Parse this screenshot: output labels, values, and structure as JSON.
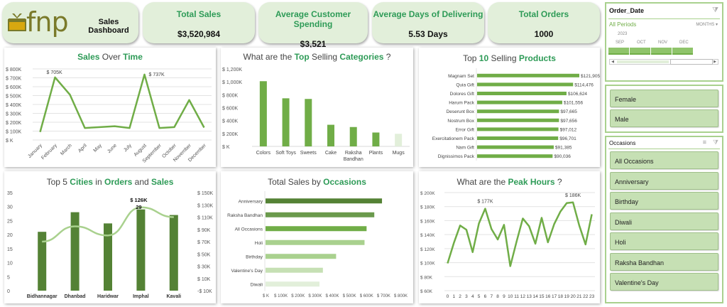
{
  "header": {
    "logo_text": "fnp",
    "title": "Sales Dashboard"
  },
  "kpis": [
    {
      "label": "Total Sales",
      "value": "$3,520,984"
    },
    {
      "label": "Average Customer Spending",
      "value": "$3,521"
    },
    {
      "label": "Average Days of Delivering",
      "value": "5.53 Days"
    },
    {
      "label": "Total Orders",
      "value": "1000"
    }
  ],
  "titles": {
    "sales_over_time": [
      {
        "t": "Sales",
        "g": true
      },
      {
        "t": " Over ",
        "g": false
      },
      {
        "t": "Time",
        "g": true
      }
    ],
    "categories": [
      {
        "t": "What are the ",
        "g": false
      },
      {
        "t": "Top",
        "g": true
      },
      {
        "t": " Selling ",
        "g": false
      },
      {
        "t": "Categories",
        "g": true
      },
      {
        "t": " ?",
        "g": false
      }
    ],
    "products": [
      {
        "t": "Top ",
        "g": false
      },
      {
        "t": "10",
        "g": true
      },
      {
        "t": " Selling ",
        "g": false
      },
      {
        "t": "Products",
        "g": true
      }
    ],
    "cities": [
      {
        "t": "Top 5 ",
        "g": false
      },
      {
        "t": "Cities",
        "g": true
      },
      {
        "t": " in ",
        "g": false
      },
      {
        "t": "Orders",
        "g": true
      },
      {
        "t": " and ",
        "g": false
      },
      {
        "t": "Sales",
        "g": true
      }
    ],
    "occasions": [
      {
        "t": "Total Sales by ",
        "g": false
      },
      {
        "t": "Occasions",
        "g": true
      }
    ],
    "hours": [
      {
        "t": "What are the ",
        "g": false
      },
      {
        "t": "Peak Hours",
        "g": true
      },
      {
        "t": " ?",
        "g": false
      }
    ]
  },
  "chart_data": [
    {
      "id": "sales_over_time",
      "type": "line",
      "title": "Sales Over Time",
      "categories": [
        "January",
        "February",
        "March",
        "April",
        "May",
        "June",
        "July",
        "August",
        "September",
        "October",
        "November",
        "December"
      ],
      "values": [
        90,
        705,
        510,
        135,
        145,
        155,
        135,
        737,
        135,
        145,
        450,
        140
      ],
      "unit": "$K",
      "ylim": [
        0,
        800
      ],
      "yticks": [
        "$ K",
        "$ 100K",
        "$ 200K",
        "$ 300K",
        "$ 400K",
        "$ 500K",
        "$ 600K",
        "$ 700K",
        "$ 800K"
      ],
      "annotations": [
        {
          "index": 1,
          "label": "$ 705K"
        },
        {
          "index": 7,
          "label": "$ 737K"
        }
      ],
      "color": "#70ad47",
      "grid": true
    },
    {
      "id": "categories",
      "type": "bar",
      "title": "What are the Top Selling Categories ?",
      "categories": [
        "Colors",
        "Soft Toys",
        "Sweets",
        "Cake",
        "Raksha Bandhan",
        "Plants",
        "Mugs"
      ],
      "values": [
        1010,
        745,
        735,
        335,
        300,
        215,
        195
      ],
      "unit": "$K",
      "ylim": [
        0,
        1200
      ],
      "yticks": [
        "$ K",
        "$ 200K",
        "$ 400K",
        "$ 600K",
        "$ 800K",
        "$ 1,000K",
        "$ 1,200K"
      ],
      "colors": [
        "#70ad47",
        "#70ad47",
        "#70ad47",
        "#70ad47",
        "#70ad47",
        "#70ad47",
        "#e2efda"
      ]
    },
    {
      "id": "products",
      "type": "bar",
      "orientation": "horizontal",
      "title": "Top 10 Selling Products",
      "categories": [
        "Magnam Set",
        "Quia Gift",
        "Dolores Gift",
        "Harum Pack",
        "Deserunt Box",
        "Nostrum Box",
        "Error Gift",
        "Exercitationem Pack",
        "Nam Gift",
        "Dignissimos Pack"
      ],
      "values": [
        121905,
        114476,
        106624,
        101556,
        97665,
        97656,
        97012,
        96701,
        91385,
        90036
      ],
      "labels": [
        "$121,905",
        "$114,476",
        "$106,624",
        "$101,556",
        "$97,665",
        "$97,656",
        "$97,012",
        "$96,701",
        "$91,385",
        "$90,036"
      ],
      "color": "#70ad47"
    },
    {
      "id": "cities",
      "type": "bar",
      "title": "Top 5 Cities in Orders and Sales",
      "categories": [
        "Bidhannagar",
        "Dhanbad",
        "Haridwar",
        "Imphal",
        "Kavali"
      ],
      "series": [
        {
          "name": "Orders",
          "type": "bar",
          "axis": "left",
          "values": [
            21,
            28,
            24,
            29,
            27
          ],
          "color": "#548235"
        },
        {
          "name": "Sales",
          "type": "line",
          "axis": "right",
          "values": [
            70,
            95,
            80,
            126,
            110
          ],
          "unit": "$K",
          "color": "#a9d18e"
        }
      ],
      "ylim_left": [
        0,
        35
      ],
      "yticks_left": [
        "0",
        "5",
        "10",
        "15",
        "20",
        "25",
        "30",
        "35"
      ],
      "ylim_right": [
        -10,
        150
      ],
      "yticks_right": [
        "-$ 10K",
        "$ 10K",
        "$ 30K",
        "$ 50K",
        "$ 70K",
        "$ 90K",
        "$ 110K",
        "$ 130K",
        "$ 150K"
      ],
      "annotations": [
        {
          "index": 3,
          "label": "$ 126K"
        },
        {
          "index": 3,
          "label": "29"
        }
      ]
    },
    {
      "id": "occasions",
      "type": "bar",
      "orientation": "horizontal",
      "title": "Total Sales by Occasions",
      "categories": [
        "Anniversary",
        "Raksha Bandhan",
        "All Occasions",
        "Holi",
        "Birthday",
        "Valentine's Day",
        "Diwali"
      ],
      "values": [
        680,
        635,
        590,
        578,
        412,
        335,
        315
      ],
      "unit": "$K",
      "xlim": [
        0,
        800
      ],
      "xticks": [
        "$ K",
        "$ 100K",
        "$ 200K",
        "$ 300K",
        "$ 400K",
        "$ 500K",
        "$ 600K",
        "$ 700K",
        "$ 800K"
      ],
      "colors": [
        "#548235",
        "#6a9a4c",
        "#70ad47",
        "#a9d18e",
        "#a9d18e",
        "#c6e0b4",
        "#e2efda"
      ]
    },
    {
      "id": "hours",
      "type": "line",
      "title": "What are the Peak Hours ?",
      "categories": [
        "0",
        "1",
        "2",
        "3",
        "4",
        "5",
        "6",
        "7",
        "8",
        "9",
        "10",
        "11",
        "12",
        "13",
        "14",
        "15",
        "16",
        "17",
        "18",
        "19",
        "20",
        "21",
        "22",
        "23"
      ],
      "values": [
        99,
        128,
        153,
        147,
        115,
        156,
        177,
        148,
        133,
        154,
        95,
        130,
        163,
        152,
        127,
        164,
        129,
        155,
        173,
        185,
        186,
        153,
        126,
        169
      ],
      "unit": "$K",
      "ylim": [
        60,
        200
      ],
      "yticks": [
        "$ 60K",
        "$ 80K",
        "$ 100K",
        "$ 120K",
        "$ 140K",
        "$ 160K",
        "$ 180K",
        "$ 200K"
      ],
      "annotations": [
        {
          "index": 6,
          "label": "$ 177K"
        },
        {
          "index": 20,
          "label": "$ 186K"
        }
      ],
      "color": "#70ad47",
      "grid": true
    }
  ],
  "slicers": {
    "order_date": {
      "title": "Order_Date",
      "period_label": "All Periods",
      "level": "MONTHS",
      "year": "2023",
      "months": [
        "SEP",
        "OCT",
        "NOV",
        "DEC"
      ]
    },
    "gender": {
      "items": [
        "Female",
        "Male"
      ]
    },
    "occasions": {
      "title": "Occasions",
      "items": [
        "All Occasions",
        "Anniversary",
        "Birthday",
        "Diwali",
        "Holi",
        "Raksha Bandhan",
        "Valentine's Day"
      ]
    }
  }
}
